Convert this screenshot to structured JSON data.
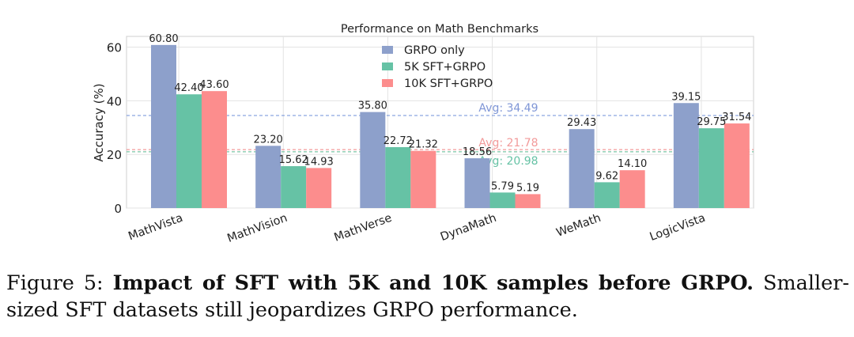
{
  "chart_data": {
    "type": "bar",
    "title": "Performance on Math Benchmarks",
    "xlabel": "",
    "ylabel": "Accuracy (%)",
    "ylim": [
      0,
      64
    ],
    "yticks": [
      0,
      20,
      40,
      60
    ],
    "grid": true,
    "legend_position": "top-center",
    "categories": [
      "MathVista",
      "MathVision",
      "MathVerse",
      "DynaMath",
      "WeMath",
      "LogicVista"
    ],
    "series": [
      {
        "name": "GRPO only",
        "color": "#8DA0CB",
        "values": [
          60.8,
          23.2,
          35.8,
          18.56,
          29.43,
          39.15
        ],
        "labels": [
          "60.80",
          "23.20",
          "35.80",
          "18.56",
          "29.43",
          "39.15"
        ]
      },
      {
        "name": "5K SFT+GRPO",
        "color": "#66C2A5",
        "values": [
          42.4,
          15.62,
          22.72,
          5.79,
          9.62,
          29.75
        ],
        "labels": [
          "42.40",
          "15.62",
          "22.72",
          "5.79",
          "9.62",
          "29.75"
        ]
      },
      {
        "name": "10K SFT+GRPO",
        "color": "#FC8D8D",
        "values": [
          43.6,
          14.93,
          21.32,
          5.19,
          14.1,
          31.54
        ],
        "labels": [
          "43.60",
          "14.93",
          "21.32",
          "5.19",
          "14.10",
          "31.54"
        ]
      }
    ],
    "averages": [
      {
        "value": 34.49,
        "label": "Avg: 34.49",
        "color": "#6F8FD8",
        "text_color": "#7F96D6"
      },
      {
        "value": 21.78,
        "label": "Avg: 21.78",
        "color": "#F08080",
        "text_color": "#F29A9A"
      },
      {
        "value": 20.98,
        "label": "Avg: 20.98",
        "color": "#5CB88F",
        "text_color": "#66C2A5"
      }
    ]
  },
  "caption": {
    "prefix": "Figure 5:",
    "bold": "Impact of SFT with 5K and 10K samples before GRPO.",
    "rest": "Smaller-sized SFT datasets still jeopardizes GRPO performance."
  }
}
